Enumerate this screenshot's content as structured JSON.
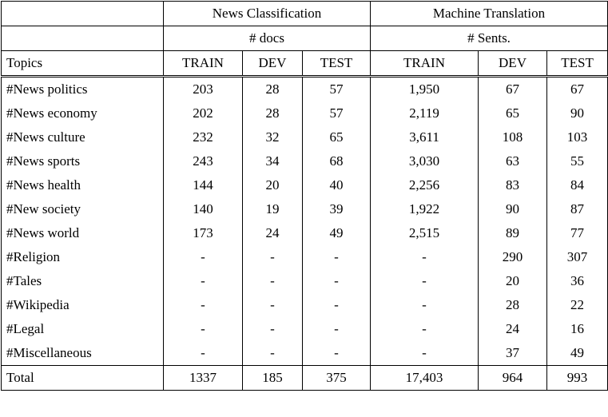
{
  "table": {
    "group_headers": [
      "News Classification",
      "Machine Translation"
    ],
    "unit_headers": [
      "# docs",
      "# Sents."
    ],
    "col_headers": [
      "Topics",
      "TRAIN",
      "DEV",
      "TEST",
      "TRAIN",
      "DEV",
      "TEST"
    ],
    "rows": [
      {
        "topic": "#News politics",
        "values": [
          "203",
          "28",
          "57",
          "1,950",
          "67",
          "67"
        ]
      },
      {
        "topic": "#News economy",
        "values": [
          "202",
          "28",
          "57",
          "2,119",
          "65",
          "90"
        ]
      },
      {
        "topic": "#News culture",
        "values": [
          "232",
          "32",
          "65",
          "3,611",
          "108",
          "103"
        ]
      },
      {
        "topic": "#News sports",
        "values": [
          "243",
          "34",
          "68",
          "3,030",
          "63",
          "55"
        ]
      },
      {
        "topic": "#News health",
        "values": [
          "144",
          "20",
          "40",
          "2,256",
          "83",
          "84"
        ]
      },
      {
        "topic": "#New society",
        "values": [
          "140",
          "19",
          "39",
          "1,922",
          "90",
          "87"
        ]
      },
      {
        "topic": "#News world",
        "values": [
          "173",
          "24",
          "49",
          "2,515",
          "89",
          "77"
        ]
      },
      {
        "topic": "#Religion",
        "values": [
          "-",
          "-",
          "-",
          "-",
          "290",
          "307"
        ]
      },
      {
        "topic": "#Tales",
        "values": [
          "-",
          "-",
          "-",
          "-",
          "20",
          "36"
        ]
      },
      {
        "topic": "#Wikipedia",
        "values": [
          "-",
          "-",
          "-",
          "-",
          "28",
          "22"
        ]
      },
      {
        "topic": "#Legal",
        "values": [
          "-",
          "-",
          "-",
          "-",
          "24",
          "16"
        ]
      },
      {
        "topic": "#Miscellaneous",
        "values": [
          "-",
          "-",
          "-",
          "-",
          "37",
          "49"
        ]
      }
    ],
    "total": {
      "label": "Total",
      "values": [
        "1337",
        "185",
        "375",
        "17,403",
        "964",
        "993"
      ]
    }
  }
}
